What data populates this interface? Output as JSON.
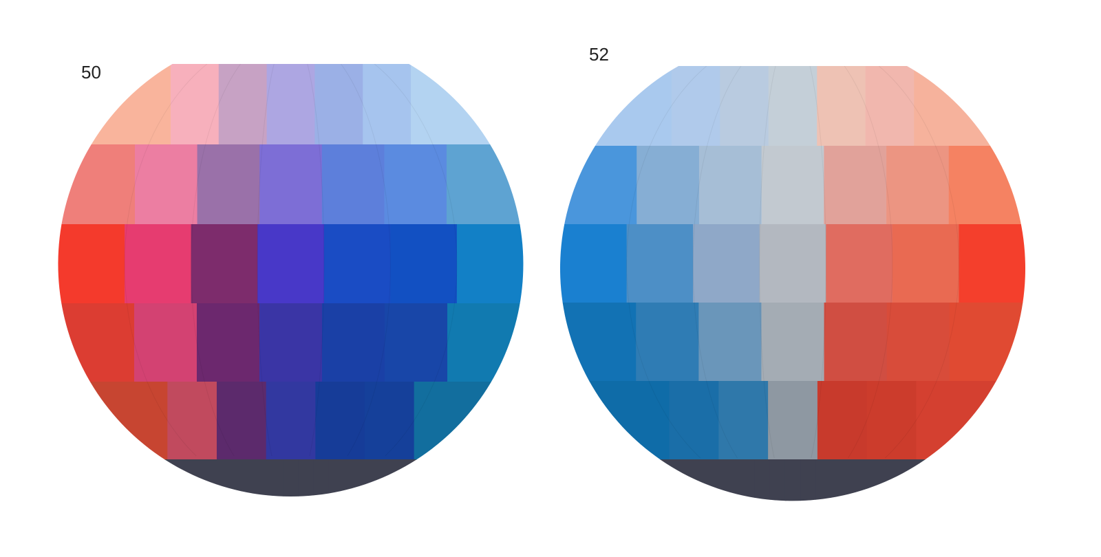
{
  "plates": [
    {
      "number": "50",
      "grid": [
        [
          "#f9b49c",
          "#f7b0bc",
          "#c7a2c4",
          "#ada6e2",
          "#9bb0e6",
          "#a6c4ee",
          "#b3d3f1"
        ],
        [
          "#ef7f7a",
          "#ec7ea2",
          "#9a71a9",
          "#7d6ed6",
          "#5d7fdb",
          "#5b8be0",
          "#5ea3d2"
        ],
        [
          "#f43a2c",
          "#e63c70",
          "#7d2c6c",
          "#4838c8",
          "#1a4cc4",
          "#1250c2",
          "#1280c6"
        ],
        [
          "#dc3d32",
          "#d34272",
          "#6c286e",
          "#3a35a5",
          "#1a40a6",
          "#1846a8",
          "#117ab0"
        ],
        [
          "#c74531",
          "#c14a5e",
          "#5c2a6c",
          "#3238a0",
          "#163c98",
          "#15409a",
          "#126e9e"
        ],
        [
          "#3f4150",
          "#3f4150",
          "#3f4150",
          "#3f4150",
          "#3f4150",
          "#3f4150",
          "#3f4150"
        ]
      ],
      "accent_colors": [
        "#f43a2c",
        "#1250c2",
        "#3f4150"
      ]
    },
    {
      "number": "52",
      "grid": [
        [
          "#a9c9ee",
          "#b0caeb",
          "#b9cbe0",
          "#c4cfd8",
          "#eec2b4",
          "#f1b7ae",
          "#f6b29c"
        ],
        [
          "#4a96dc",
          "#86aed4",
          "#a6bed6",
          "#c2c9d0",
          "#e1a29a",
          "#ec9582",
          "#f58262"
        ],
        [
          "#1a80d0",
          "#4d8fc6",
          "#8fa8c8",
          "#b3b8c0",
          "#e06c60",
          "#e96a52",
          "#f43f2c"
        ],
        [
          "#1272b4",
          "#2f7cb4",
          "#6a96ba",
          "#a4acb4",
          "#d04e42",
          "#d84c3a",
          "#e04a32"
        ],
        [
          "#0f6ca8",
          "#1a6ea8",
          "#2f78aa",
          "#8e98a2",
          "#c83a2c",
          "#cc3c2c",
          "#d44030"
        ],
        [
          "#3f4150",
          "#3f4150",
          "#3f4150",
          "#3f4150",
          "#3f4150",
          "#3f4150",
          "#3f4150"
        ]
      ],
      "accent_colors": [
        "#1a80d0",
        "#f43f2c",
        "#3f4150"
      ]
    }
  ]
}
